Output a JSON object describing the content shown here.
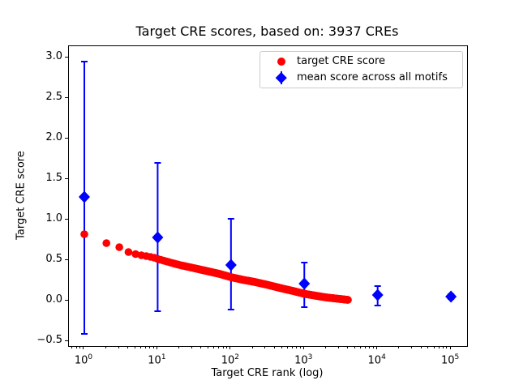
{
  "figure": {
    "title": "Target CRE scores, based on: 3937 CREs"
  },
  "chart_data": {
    "type": "scatter",
    "title": "Target CRE scores, based on: 3937 CREs",
    "xlabel": "Target CRE rank (log)",
    "ylabel": "Target CRE score",
    "x_scale": "log",
    "grid": false,
    "legend_position": "upper right",
    "xlim_log10": [
      -0.21,
      5.22
    ],
    "ylim": [
      -0.56,
      3.14
    ],
    "x_tick_exponents": [
      0,
      1,
      2,
      3,
      4,
      5
    ],
    "y_tick_values": [
      -0.5,
      0.0,
      0.5,
      1.0,
      1.5,
      2.0,
      2.5,
      3.0
    ],
    "y_tick_labels": [
      "−0.5",
      "0.0",
      "0.5",
      "1.0",
      "1.5",
      "2.0",
      "2.5",
      "3.0"
    ],
    "colors": {
      "target_series": "#ff0000",
      "mean_series": "#0000ff"
    },
    "series": [
      {
        "name": "target CRE score",
        "type": "scatter",
        "marker": "circle",
        "color": "#ff0000",
        "n_points": 3937,
        "rank_range": [
          1,
          3937
        ],
        "anchors": [
          [
            1,
            0.82
          ],
          [
            2,
            0.71
          ],
          [
            3,
            0.66
          ],
          [
            4,
            0.6
          ],
          [
            5,
            0.575
          ],
          [
            6,
            0.56
          ],
          [
            7,
            0.55
          ],
          [
            8,
            0.54
          ],
          [
            9,
            0.53
          ],
          [
            10,
            0.515
          ],
          [
            15,
            0.47
          ],
          [
            20,
            0.44
          ],
          [
            30,
            0.405
          ],
          [
            50,
            0.36
          ],
          [
            70,
            0.33
          ],
          [
            100,
            0.29
          ],
          [
            150,
            0.255
          ],
          [
            200,
            0.235
          ],
          [
            300,
            0.2
          ],
          [
            500,
            0.15
          ],
          [
            700,
            0.12
          ],
          [
            1000,
            0.085
          ],
          [
            1500,
            0.058
          ],
          [
            2000,
            0.04
          ],
          [
            3000,
            0.022
          ],
          [
            3937,
            0.01
          ]
        ]
      },
      {
        "name": "mean score across all motifs",
        "type": "errorbar",
        "marker": "diamond",
        "color": "#0000ff",
        "x": [
          1,
          10,
          100,
          1000,
          10000,
          100000
        ],
        "mean": [
          1.28,
          0.78,
          0.44,
          0.21,
          0.07,
          0.05
        ],
        "err_low": [
          -0.41,
          -0.13,
          -0.11,
          -0.08,
          -0.06,
          0.02
        ],
        "err_high": [
          2.95,
          1.7,
          1.01,
          0.47,
          0.18,
          0.08
        ]
      }
    ]
  }
}
